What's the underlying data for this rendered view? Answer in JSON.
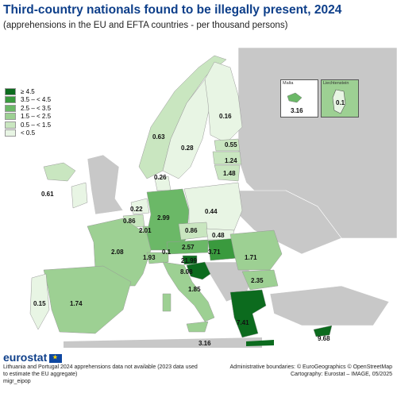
{
  "title": "Third-country nationals found to be illegally present, 2024",
  "subtitle": "(apprehensions in the EU and EFTA countries - per thousand persons)",
  "colors": {
    "c6": "#0c6b1e",
    "c5": "#3a9a3e",
    "c4": "#6bb867",
    "c3": "#9dd093",
    "c2": "#c9e6c0",
    "c1": "#e8f5e4",
    "nodata": "#c8c8c8",
    "sea": "#ffffff"
  },
  "legend": [
    {
      "label": "≥ 4.5",
      "color": "#0c6b1e"
    },
    {
      "label": "3.5 – < 4.5",
      "color": "#3a9a3e"
    },
    {
      "label": "2.5 – < 3.5",
      "color": "#6bb867"
    },
    {
      "label": "1.5 – < 2.5",
      "color": "#9dd093"
    },
    {
      "label": "0.5 – < 1.5",
      "color": "#c9e6c0"
    },
    {
      "label": "< 0.5",
      "color": "#e8f5e4"
    }
  ],
  "insets": {
    "malta": {
      "name": "Malta",
      "value": "3.16"
    },
    "liechtenstein": {
      "name": "Liechtenstein",
      "value": "0.1"
    }
  },
  "map_values": [
    {
      "country": "Iceland",
      "value": "0.61"
    },
    {
      "country": "Norway",
      "value": "0.63"
    },
    {
      "country": "Sweden",
      "value": "0.28"
    },
    {
      "country": "Finland",
      "value": "0.16"
    },
    {
      "country": "Estonia",
      "value": "0.55"
    },
    {
      "country": "Latvia",
      "value": "1.24"
    },
    {
      "country": "Lithuania",
      "value": "1.48"
    },
    {
      "country": "Denmark",
      "value": "0.26"
    },
    {
      "country": "Netherlands",
      "value": "0.22"
    },
    {
      "country": "Belgium",
      "value": "0.86"
    },
    {
      "country": "Luxembourg",
      "value": "2.01"
    },
    {
      "country": "Germany",
      "value": "2.99"
    },
    {
      "country": "Poland",
      "value": "0.44"
    },
    {
      "country": "Czechia",
      "value": "0.86"
    },
    {
      "country": "Slovakia",
      "value": "0.48"
    },
    {
      "country": "Austria",
      "value": "2.57"
    },
    {
      "country": "Hungary",
      "value": "3.71"
    },
    {
      "country": "Romania",
      "value": "1.71"
    },
    {
      "country": "Bulgaria",
      "value": "2.35"
    },
    {
      "country": "France",
      "value": "2.08"
    },
    {
      "country": "Switzerland",
      "value": "1.93"
    },
    {
      "country": "Liechtenstein",
      "value": "0.1"
    },
    {
      "country": "Slovenia",
      "value": "21.99"
    },
    {
      "country": "Croatia",
      "value": "8.08"
    },
    {
      "country": "Italy",
      "value": "1.85"
    },
    {
      "country": "Spain",
      "value": "1.74"
    },
    {
      "country": "Portugal",
      "value": "0.15"
    },
    {
      "country": "Greece",
      "value": "7.41"
    },
    {
      "country": "Cyprus",
      "value": "9.68"
    },
    {
      "country": "Malta",
      "value": "3.16"
    }
  ],
  "footer": {
    "logo": "eurostat",
    "note_line1": "Lithuania and Portugal 2024 apprehensions data not available (2023 data used",
    "note_line2": "to estimate the EU aggregate)",
    "code": "migr_eipop",
    "credit1": "Administrative boundaries: © EuroGeographics © OpenStreetMap",
    "credit2": "Cartography: Eurostat – IMAGE, 05/2025"
  }
}
